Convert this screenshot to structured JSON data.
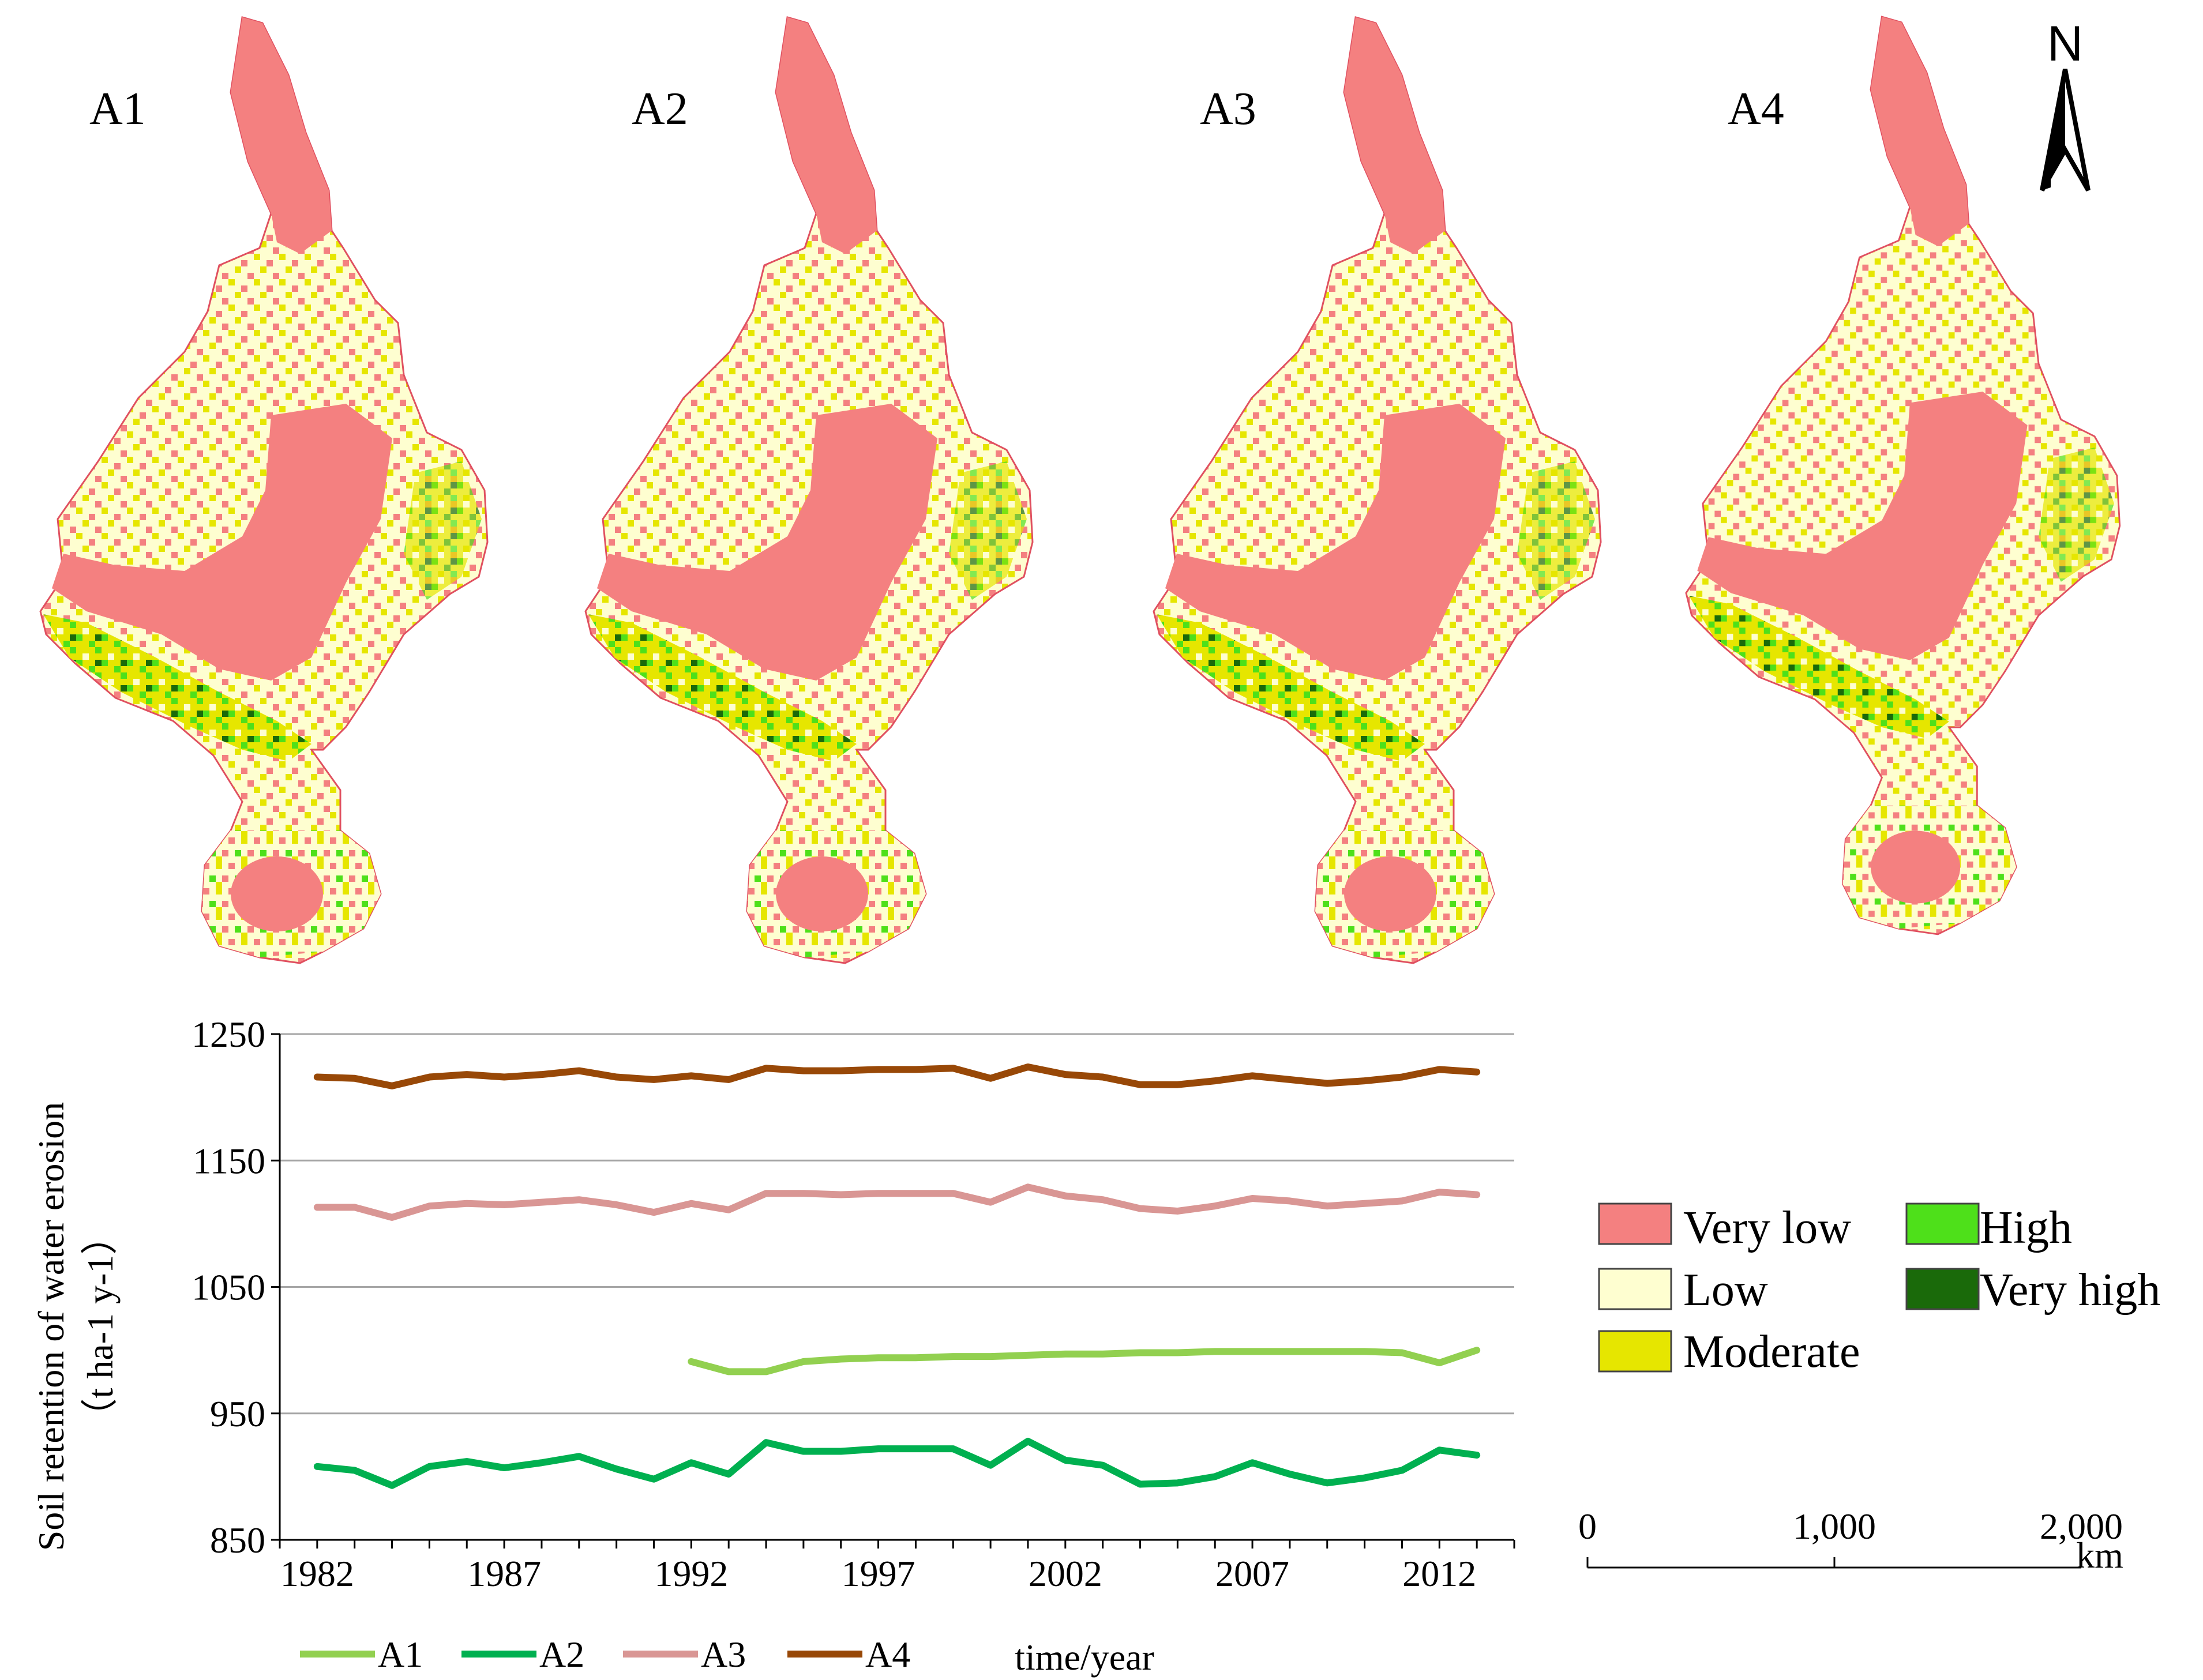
{
  "maps": {
    "panels": [
      {
        "id": "A1",
        "label": "A1"
      },
      {
        "id": "A2",
        "label": "A2"
      },
      {
        "id": "A3",
        "label": "A3"
      },
      {
        "id": "A4",
        "label": "A4"
      }
    ],
    "north_label": "N",
    "legend": {
      "items": [
        {
          "label": "Very low",
          "color": "#f48080"
        },
        {
          "label": "Low",
          "color": "#fefed0"
        },
        {
          "label": "Moderate",
          "color": "#e6e600"
        },
        {
          "label": "High",
          "color": "#4ee01a"
        },
        {
          "label": "Very high",
          "color": "#1a6a0a"
        }
      ]
    },
    "scale_bar": {
      "ticks": [
        "0",
        "1,000",
        "2,000"
      ],
      "unit": "km"
    }
  },
  "chart_data": {
    "type": "line",
    "ylabel_line1": "Soil retention  of water erosion",
    "ylabel_line2": "（t ha-1 y-1）",
    "xlabel": "time/year",
    "ylim": [
      850,
      1250
    ],
    "yticks": [
      850,
      950,
      1050,
      1150,
      1250
    ],
    "xlim": [
      1981,
      2014
    ],
    "xticks": [
      1982,
      1987,
      1992,
      1997,
      2002,
      2007,
      2012
    ],
    "grid": true,
    "legend_position": "bottom",
    "series": [
      {
        "name": "A1",
        "color": "#92d050",
        "x": [
          1992,
          1993,
          1994,
          1995,
          1996,
          1997,
          1998,
          1999,
          2000,
          2001,
          2002,
          2003,
          2004,
          2005,
          2006,
          2007,
          2008,
          2009,
          2010,
          2011,
          2012,
          2013
        ],
        "values": [
          991,
          983,
          983,
          991,
          993,
          994,
          994,
          995,
          995,
          996,
          997,
          997,
          998,
          998,
          999,
          999,
          999,
          999,
          999,
          998,
          990,
          1000
        ]
      },
      {
        "name": "A2",
        "color": "#00b050",
        "x": [
          1982,
          1983,
          1984,
          1985,
          1986,
          1987,
          1988,
          1989,
          1990,
          1991,
          1992,
          1993,
          1994,
          1995,
          1996,
          1997,
          1998,
          1999,
          2000,
          2001,
          2002,
          2003,
          2004,
          2005,
          2006,
          2007,
          2008,
          2009,
          2010,
          2011,
          2012,
          2013
        ],
        "values": [
          908,
          905,
          893,
          908,
          912,
          907,
          911,
          916,
          906,
          898,
          911,
          902,
          927,
          920,
          920,
          922,
          922,
          922,
          909,
          928,
          913,
          909,
          894,
          895,
          900,
          911,
          902,
          895,
          899,
          905,
          921,
          917
        ]
      },
      {
        "name": "A3",
        "color": "#d99694",
        "x": [
          1982,
          1983,
          1984,
          1985,
          1986,
          1987,
          1988,
          1989,
          1990,
          1991,
          1992,
          1993,
          1994,
          1995,
          1996,
          1997,
          1998,
          1999,
          2000,
          2001,
          2002,
          2003,
          2004,
          2005,
          2006,
          2007,
          2008,
          2009,
          2010,
          2011,
          2012,
          2013
        ],
        "values": [
          1113,
          1113,
          1105,
          1114,
          1116,
          1115,
          1117,
          1119,
          1115,
          1109,
          1116,
          1111,
          1124,
          1124,
          1123,
          1124,
          1124,
          1124,
          1117,
          1129,
          1122,
          1119,
          1112,
          1110,
          1114,
          1120,
          1118,
          1114,
          1116,
          1118,
          1125,
          1123
        ]
      },
      {
        "name": "A4",
        "color": "#984807",
        "x": [
          1982,
          1983,
          1984,
          1985,
          1986,
          1987,
          1988,
          1989,
          1990,
          1991,
          1992,
          1993,
          1994,
          1995,
          1996,
          1997,
          1998,
          1999,
          2000,
          2001,
          2002,
          2003,
          2004,
          2005,
          2006,
          2007,
          2008,
          2009,
          2010,
          2011,
          2012,
          2013
        ],
        "values": [
          1216,
          1215,
          1209,
          1216,
          1218,
          1216,
          1218,
          1221,
          1216,
          1214,
          1217,
          1214,
          1223,
          1221,
          1221,
          1222,
          1222,
          1223,
          1215,
          1224,
          1218,
          1216,
          1210,
          1210,
          1213,
          1217,
          1214,
          1211,
          1213,
          1216,
          1222,
          1220
        ]
      }
    ]
  }
}
